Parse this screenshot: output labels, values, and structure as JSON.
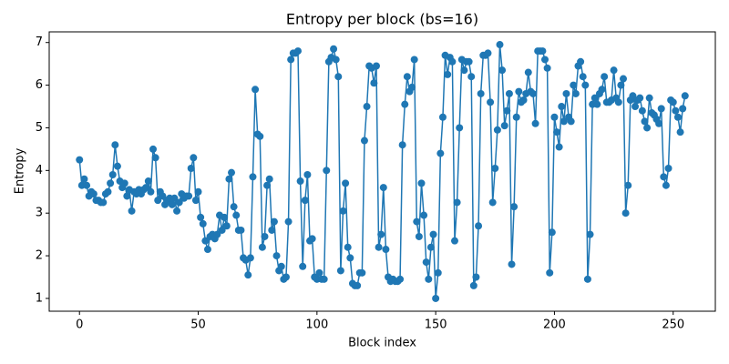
{
  "chart_data": {
    "type": "line",
    "title": "Entropy per block (bs=16)",
    "x_label": "Block index",
    "y_label": "Entropy",
    "color": "#1f77b4",
    "grid": false,
    "x": [
      0,
      1,
      2,
      3,
      4,
      5,
      6,
      7,
      8,
      9,
      10,
      11,
      12,
      13,
      14,
      15,
      16,
      17,
      18,
      19,
      20,
      21,
      22,
      23,
      24,
      25,
      26,
      27,
      28,
      29,
      30,
      31,
      32,
      33,
      34,
      35,
      36,
      37,
      38,
      39,
      40,
      41,
      42,
      43,
      44,
      45,
      46,
      47,
      48,
      49,
      50,
      51,
      52,
      53,
      54,
      55,
      56,
      57,
      58,
      59,
      60,
      61,
      62,
      63,
      64,
      65,
      66,
      67,
      68,
      69,
      70,
      71,
      72,
      73,
      74,
      75,
      76,
      77,
      78,
      79,
      80,
      81,
      82,
      83,
      84,
      85,
      86,
      87,
      88,
      89,
      90,
      91,
      92,
      93,
      94,
      95,
      96,
      97,
      98,
      99,
      100,
      101,
      102,
      103,
      104,
      105,
      106,
      107,
      108,
      109,
      110,
      111,
      112,
      113,
      114,
      115,
      116,
      117,
      118,
      119,
      120,
      121,
      122,
      123,
      124,
      125,
      126,
      127,
      128,
      129,
      130,
      131,
      132,
      133,
      134,
      135,
      136,
      137,
      138,
      139,
      140,
      141,
      142,
      143,
      144,
      145,
      146,
      147,
      148,
      149,
      150,
      151,
      152,
      153,
      154,
      155,
      156,
      157,
      158,
      159,
      160,
      161,
      162,
      163,
      164,
      165,
      166,
      167,
      168,
      169,
      170,
      171,
      172,
      173,
      174,
      175,
      176,
      177,
      178,
      179,
      180,
      181,
      182,
      183,
      184,
      185,
      186,
      187,
      188,
      189,
      190,
      191,
      192,
      193,
      194,
      195,
      196,
      197,
      198,
      199,
      200,
      201,
      202,
      203,
      204,
      205,
      206,
      207,
      208,
      209,
      210,
      211,
      212,
      213,
      214,
      215,
      216,
      217,
      218,
      219,
      220,
      221,
      222,
      223,
      224,
      225,
      226,
      227,
      228,
      229,
      230,
      231,
      232,
      233,
      234,
      235,
      236,
      237,
      238,
      239,
      240,
      241,
      242,
      243,
      244,
      245,
      246,
      247,
      248,
      249,
      250,
      251,
      252,
      253,
      254,
      255
    ],
    "values": [
      4.25,
      3.65,
      3.8,
      3.65,
      3.4,
      3.5,
      3.45,
      3.3,
      3.3,
      3.25,
      3.25,
      3.45,
      3.5,
      3.7,
      3.9,
      4.6,
      4.1,
      3.75,
      3.6,
      3.7,
      3.4,
      3.55,
      3.05,
      3.5,
      3.45,
      3.55,
      3.45,
      3.55,
      3.6,
      3.75,
      3.5,
      4.5,
      4.3,
      3.3,
      3.5,
      3.4,
      3.2,
      3.3,
      3.35,
      3.2,
      3.35,
      3.05,
      3.25,
      3.45,
      3.35,
      3.4,
      3.4,
      4.05,
      4.3,
      3.3,
      3.5,
      2.9,
      2.75,
      2.35,
      2.15,
      2.45,
      2.5,
      2.4,
      2.5,
      2.95,
      2.6,
      2.9,
      2.7,
      3.8,
      3.95,
      3.15,
      2.95,
      2.6,
      2.6,
      1.95,
      1.9,
      1.55,
      1.95,
      3.85,
      5.9,
      4.85,
      4.8,
      2.2,
      2.45,
      3.65,
      3.8,
      2.6,
      2.8,
      2.0,
      1.65,
      1.75,
      1.45,
      1.5,
      2.8,
      6.6,
      6.75,
      6.75,
      6.8,
      3.75,
      1.75,
      3.3,
      3.9,
      2.35,
      2.4,
      1.5,
      1.45,
      1.6,
      1.45,
      1.45,
      4.0,
      6.55,
      6.65,
      6.85,
      6.6,
      6.2,
      1.65,
      3.05,
      3.7,
      2.2,
      1.95,
      1.35,
      1.3,
      1.3,
      1.6,
      1.6,
      4.7,
      5.5,
      6.45,
      6.4,
      6.05,
      6.45,
      2.2,
      2.5,
      3.6,
      2.15,
      1.5,
      1.4,
      1.45,
      1.4,
      1.4,
      1.45,
      4.6,
      5.55,
      6.2,
      5.85,
      5.95,
      6.6,
      2.8,
      2.45,
      3.7,
      2.95,
      1.85,
      1.45,
      2.2,
      2.5,
      1.0,
      1.6,
      4.4,
      5.25,
      6.7,
      6.25,
      6.65,
      6.55,
      2.35,
      3.25,
      5.0,
      6.6,
      6.35,
      6.55,
      6.55,
      6.2,
      1.3,
      1.5,
      2.7,
      5.8,
      6.7,
      6.7,
      6.75,
      5.6,
      3.25,
      4.05,
      4.95,
      6.95,
      6.35,
      5.05,
      5.4,
      5.8,
      1.8,
      3.15,
      5.25,
      5.85,
      5.6,
      5.65,
      5.8,
      6.3,
      5.85,
      5.8,
      5.1,
      6.8,
      6.8,
      6.8,
      6.6,
      6.4,
      1.6,
      2.55,
      5.25,
      4.9,
      4.55,
      5.5,
      5.15,
      5.8,
      5.25,
      5.15,
      6.0,
      5.8,
      6.45,
      6.55,
      6.2,
      6.0,
      1.45,
      2.5,
      5.55,
      5.7,
      5.55,
      5.8,
      5.9,
      6.2,
      5.6,
      5.6,
      5.65,
      6.35,
      5.7,
      5.6,
      6.0,
      6.15,
      3.0,
      3.65,
      5.65,
      5.75,
      5.5,
      5.65,
      5.7,
      5.4,
      5.15,
      5.0,
      5.7,
      5.35,
      5.3,
      5.2,
      5.1,
      5.45,
      3.85,
      3.65,
      4.05,
      5.65,
      5.6,
      5.4,
      5.25,
      4.9,
      5.45,
      5.75
    ],
    "xlim": [
      -12.75,
      267.75
    ],
    "xticks": [
      0,
      50,
      100,
      150,
      200,
      250
    ],
    "ylim": [
      0.7,
      7.25
    ],
    "yticks": [
      1,
      2,
      3,
      4,
      5,
      6,
      7
    ]
  }
}
